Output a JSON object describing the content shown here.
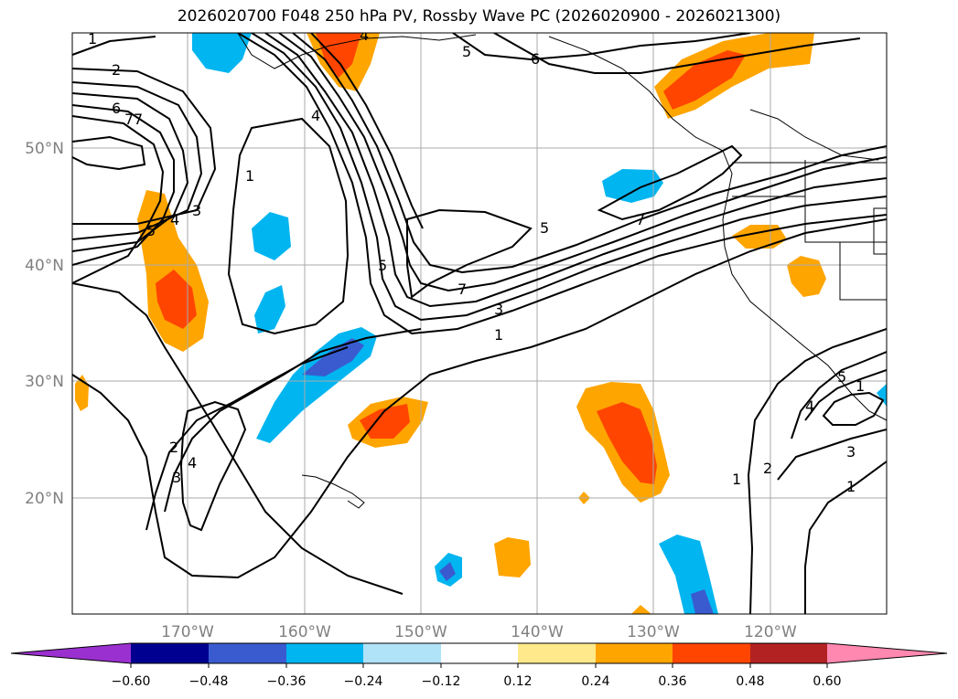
{
  "title": "2026020700 F048 250 hPa PV, Rossby Wave PC (2026020900 - 2026021300)",
  "map": {
    "lon_labels": [
      "170°W",
      "160°W",
      "150°W",
      "140°W",
      "130°W",
      "120°W"
    ],
    "lat_labels": [
      "20°N",
      "30°N",
      "40°N",
      "50°N"
    ],
    "contour_labels": [
      "1",
      "2",
      "6",
      "7",
      "1",
      "3",
      "5",
      "4",
      "5",
      "5",
      "4",
      "6",
      "4",
      "1",
      "7",
      "5",
      "7",
      "3",
      "1",
      "2",
      "3",
      "4",
      "1",
      "2",
      "3",
      "4",
      "5",
      "1",
      "7"
    ]
  },
  "colorbar": {
    "ticks": [
      "−0.60",
      "−0.48",
      "−0.36",
      "−0.24",
      "−0.12",
      "0.12",
      "0.24",
      "0.36",
      "0.48",
      "0.60"
    ],
    "colors": [
      "#9b30d0",
      "#000090",
      "#3a5bd0",
      "#00b5f0",
      "#b0e2f8",
      "#ffffff",
      "#ffe98a",
      "#ffa500",
      "#ff4500",
      "#b22222",
      "#ff88b0"
    ]
  }
}
